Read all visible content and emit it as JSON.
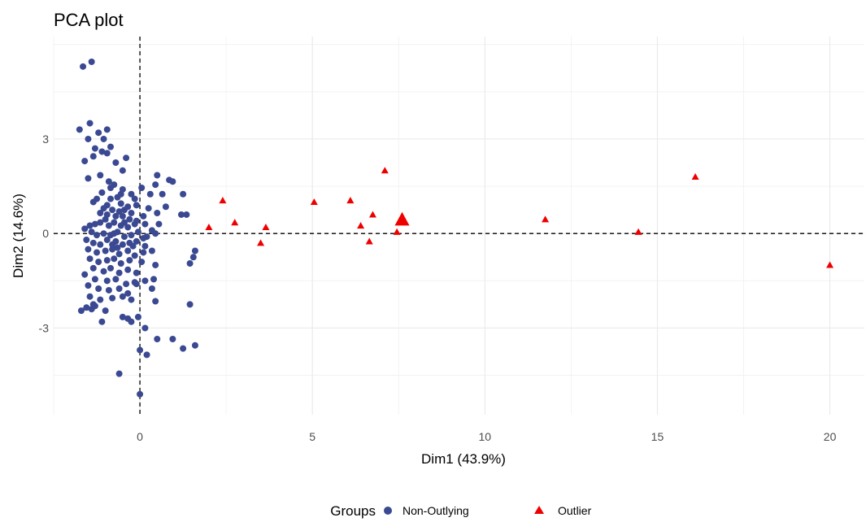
{
  "chart_data": {
    "type": "scatter",
    "title": "PCA plot",
    "xlabel": "Dim1 (43.9%)",
    "ylabel": "Dim2 (14.6%)",
    "xlim": [
      -2.5,
      21
    ],
    "ylim": [
      -5.75,
      6.25
    ],
    "x_ticks": [
      0,
      5,
      10,
      15,
      20
    ],
    "x_tick_labels": [
      "0",
      "5",
      "10",
      "15",
      "20"
    ],
    "y_ticks": [
      -3,
      0,
      3
    ],
    "y_tick_labels": [
      "-3",
      "0",
      "3"
    ],
    "grid": true,
    "reference_lines": {
      "x": 0,
      "y": 0,
      "style": "dashed"
    },
    "legend": {
      "title": "Groups",
      "position": "bottom",
      "entries": [
        {
          "label": "Non-Outlying",
          "shape": "circle",
          "color": "#3b4992"
        },
        {
          "label": "Outlier",
          "shape": "triangle",
          "color": "#ee0000"
        }
      ]
    },
    "series": [
      {
        "name": "Non-Outlying",
        "shape": "circle",
        "color": "#3b4992",
        "points": [
          [
            -1.65,
            5.3
          ],
          [
            -1.4,
            5.45
          ],
          [
            -1.75,
            3.3
          ],
          [
            -1.45,
            3.5
          ],
          [
            -1.5,
            3.0
          ],
          [
            -1.2,
            3.2
          ],
          [
            -1.05,
            3.0
          ],
          [
            -0.95,
            3.3
          ],
          [
            -1.3,
            2.7
          ],
          [
            -1.1,
            2.6
          ],
          [
            -1.35,
            2.45
          ],
          [
            -1.6,
            2.3
          ],
          [
            -0.85,
            2.75
          ],
          [
            -0.7,
            2.25
          ],
          [
            -0.95,
            2.55
          ],
          [
            -0.4,
            2.4
          ],
          [
            -1.5,
            1.75
          ],
          [
            -1.15,
            1.85
          ],
          [
            -0.9,
            1.65
          ],
          [
            -0.75,
            1.55
          ],
          [
            -0.5,
            1.4
          ],
          [
            -0.25,
            1.25
          ],
          [
            0.05,
            1.45
          ],
          [
            0.5,
            1.85
          ],
          [
            0.45,
            1.55
          ],
          [
            0.85,
            1.7
          ],
          [
            0.95,
            1.65
          ],
          [
            0.3,
            1.25
          ],
          [
            0.65,
            1.25
          ],
          [
            1.25,
            1.25
          ],
          [
            -1.1,
            1.3
          ],
          [
            -1.25,
            1.1
          ],
          [
            -1.35,
            1.0
          ],
          [
            -0.85,
            1.1
          ],
          [
            -0.65,
            1.15
          ],
          [
            -0.55,
            0.95
          ],
          [
            -0.35,
            0.85
          ],
          [
            -0.15,
            1.1
          ],
          [
            -0.95,
            0.9
          ],
          [
            -1.05,
            0.8
          ],
          [
            -0.8,
            0.75
          ],
          [
            -0.6,
            0.7
          ],
          [
            -0.45,
            0.75
          ],
          [
            -0.25,
            0.65
          ],
          [
            -1.15,
            0.65
          ],
          [
            -0.95,
            0.6
          ],
          [
            -0.7,
            0.55
          ],
          [
            -0.5,
            0.55
          ],
          [
            -0.3,
            0.45
          ],
          [
            -0.1,
            0.4
          ],
          [
            0.1,
            0.55
          ],
          [
            0.5,
            0.65
          ],
          [
            0.75,
            0.85
          ],
          [
            1.2,
            0.6
          ],
          [
            1.35,
            0.6
          ],
          [
            -1.3,
            0.3
          ],
          [
            -1.45,
            0.25
          ],
          [
            -1.6,
            0.15
          ],
          [
            -1.15,
            0.35
          ],
          [
            -0.9,
            0.25
          ],
          [
            -0.75,
            0.35
          ],
          [
            -0.55,
            0.25
          ],
          [
            -0.35,
            0.2
          ],
          [
            -0.15,
            0.3
          ],
          [
            0.15,
            0.3
          ],
          [
            0.35,
            0.1
          ],
          [
            0.55,
            0.3
          ],
          [
            -1.4,
            0.05
          ],
          [
            -1.25,
            -0.05
          ],
          [
            -1.05,
            0.0
          ],
          [
            -0.85,
            -0.05
          ],
          [
            -0.65,
            0.05
          ],
          [
            -0.45,
            -0.1
          ],
          [
            -0.25,
            -0.05
          ],
          [
            -0.05,
            0.05
          ],
          [
            0.2,
            -0.1
          ],
          [
            0.45,
            0.0
          ],
          [
            -1.55,
            -0.2
          ],
          [
            -1.35,
            -0.3
          ],
          [
            -1.15,
            -0.35
          ],
          [
            -0.95,
            -0.2
          ],
          [
            -0.7,
            -0.25
          ],
          [
            -0.5,
            -0.35
          ],
          [
            -0.3,
            -0.3
          ],
          [
            -0.1,
            -0.25
          ],
          [
            0.15,
            -0.4
          ],
          [
            -1.5,
            -0.5
          ],
          [
            -1.25,
            -0.6
          ],
          [
            -1.0,
            -0.55
          ],
          [
            -0.8,
            -0.5
          ],
          [
            -0.6,
            -0.65
          ],
          [
            -0.35,
            -0.55
          ],
          [
            -0.15,
            -0.7
          ],
          [
            0.1,
            -0.6
          ],
          [
            0.35,
            -0.55
          ],
          [
            -1.45,
            -0.8
          ],
          [
            -1.2,
            -0.9
          ],
          [
            -0.95,
            -0.85
          ],
          [
            -0.75,
            -0.8
          ],
          [
            -0.55,
            -0.95
          ],
          [
            -0.3,
            -0.85
          ],
          [
            0.05,
            -0.9
          ],
          [
            -1.35,
            -1.1
          ],
          [
            -1.05,
            -1.2
          ],
          [
            -0.85,
            -1.1
          ],
          [
            -0.6,
            -1.25
          ],
          [
            -0.35,
            -1.15
          ],
          [
            -0.1,
            -1.25
          ],
          [
            0.45,
            -1.0
          ],
          [
            -1.6,
            -1.3
          ],
          [
            -1.3,
            -1.45
          ],
          [
            -0.95,
            -1.5
          ],
          [
            -0.7,
            -1.45
          ],
          [
            -0.4,
            -1.6
          ],
          [
            -0.15,
            -1.55
          ],
          [
            0.15,
            -1.5
          ],
          [
            0.4,
            -1.45
          ],
          [
            -1.5,
            -1.65
          ],
          [
            -1.2,
            -1.75
          ],
          [
            -0.9,
            -1.8
          ],
          [
            -0.6,
            -1.75
          ],
          [
            -0.35,
            -1.9
          ],
          [
            -0.1,
            -1.6
          ],
          [
            0.35,
            -1.75
          ],
          [
            -1.45,
            -2.0
          ],
          [
            -1.15,
            -2.1
          ],
          [
            -0.8,
            -2.05
          ],
          [
            -0.5,
            -2.0
          ],
          [
            -0.25,
            -2.1
          ],
          [
            0.45,
            -2.15
          ],
          [
            -1.3,
            -2.3
          ],
          [
            -1.0,
            -2.45
          ],
          [
            -1.55,
            -2.35
          ],
          [
            -1.4,
            -2.4
          ],
          [
            -1.7,
            -2.45
          ],
          [
            -1.35,
            -2.25
          ],
          [
            -1.1,
            -2.8
          ],
          [
            -0.5,
            -2.65
          ],
          [
            -0.35,
            -2.7
          ],
          [
            -0.25,
            -2.8
          ],
          [
            -0.05,
            -2.65
          ],
          [
            0.15,
            -3.0
          ],
          [
            1.45,
            -2.25
          ],
          [
            0.5,
            -3.35
          ],
          [
            0.95,
            -3.35
          ],
          [
            1.25,
            -3.65
          ],
          [
            1.6,
            -3.55
          ],
          [
            0.0,
            -3.7
          ],
          [
            0.2,
            -3.85
          ],
          [
            -0.6,
            -4.45
          ],
          [
            0.0,
            -5.1
          ],
          [
            1.45,
            -0.95
          ],
          [
            1.6,
            -0.55
          ],
          [
            1.55,
            -0.75
          ],
          [
            -0.85,
            1.45
          ],
          [
            -0.5,
            2.0
          ],
          [
            -0.1,
            0.9
          ],
          [
            -0.2,
            -0.4
          ],
          [
            -0.75,
            0.0
          ],
          [
            0.25,
            0.8
          ],
          [
            -0.55,
            1.25
          ],
          [
            -0.8,
            -0.35
          ],
          [
            0.1,
            -0.15
          ],
          [
            -1.0,
            0.45
          ],
          [
            -0.45,
            0.35
          ],
          [
            -0.65,
            -0.45
          ]
        ]
      },
      {
        "name": "Outlier",
        "shape": "triangle",
        "color": "#ee0000",
        "points": [
          [
            2.0,
            0.2
          ],
          [
            2.4,
            1.05
          ],
          [
            2.75,
            0.35
          ],
          [
            3.5,
            -0.3
          ],
          [
            3.65,
            0.2
          ],
          [
            5.05,
            1.0
          ],
          [
            6.1,
            1.05
          ],
          [
            6.4,
            0.25
          ],
          [
            6.65,
            -0.25
          ],
          [
            6.75,
            0.6
          ],
          [
            7.1,
            2.0
          ],
          [
            7.45,
            0.05
          ],
          [
            7.6,
            0.45
          ],
          [
            11.75,
            0.45
          ],
          [
            14.45,
            0.05
          ],
          [
            16.1,
            1.8
          ],
          [
            20.0,
            -1.0
          ]
        ]
      }
    ]
  }
}
